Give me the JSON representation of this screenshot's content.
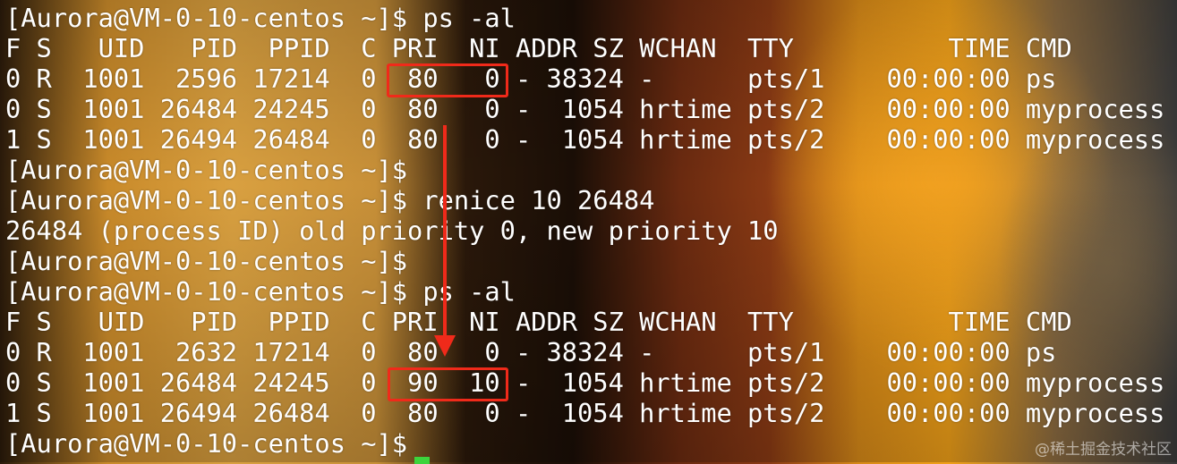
{
  "terminal": {
    "lines": [
      "[Aurora@VM-0-10-centos ~]$ ps -al",
      "F S   UID   PID  PPID  C PRI  NI ADDR SZ WCHAN  TTY          TIME CMD",
      "0 R  1001  2596 17214  0  80   0 - 38324 -      pts/1    00:00:00 ps",
      "0 S  1001 26484 24245  0  80   0 -  1054 hrtime pts/2    00:00:00 myprocess",
      "1 S  1001 26494 26484  0  80   0 -  1054 hrtime pts/2    00:00:00 myprocess",
      "[Aurora@VM-0-10-centos ~]$",
      "[Aurora@VM-0-10-centos ~]$ renice 10 26484",
      "26484 (process ID) old priority 0, new priority 10",
      "[Aurora@VM-0-10-centos ~]$",
      "[Aurora@VM-0-10-centos ~]$ ps -al",
      "F S   UID   PID  PPID  C PRI  NI ADDR SZ WCHAN  TTY          TIME CMD",
      "0 R  1001  2632 17214  0  80   0 - 38324 -      pts/1    00:00:00 ps",
      "0 S  1001 26484 24245  0  90  10 -  1054 hrtime pts/2    00:00:00 myprocess",
      "1 S  1001 26494 26484  0  80   0 -  1054 hrtime pts/2    00:00:00 myprocess",
      "[Aurora@VM-0-10-centos ~]$"
    ]
  },
  "colors": {
    "highlight": "#f02a1a",
    "cursor": "#3cd43c"
  },
  "watermark": "@稀土掘金技术社区"
}
